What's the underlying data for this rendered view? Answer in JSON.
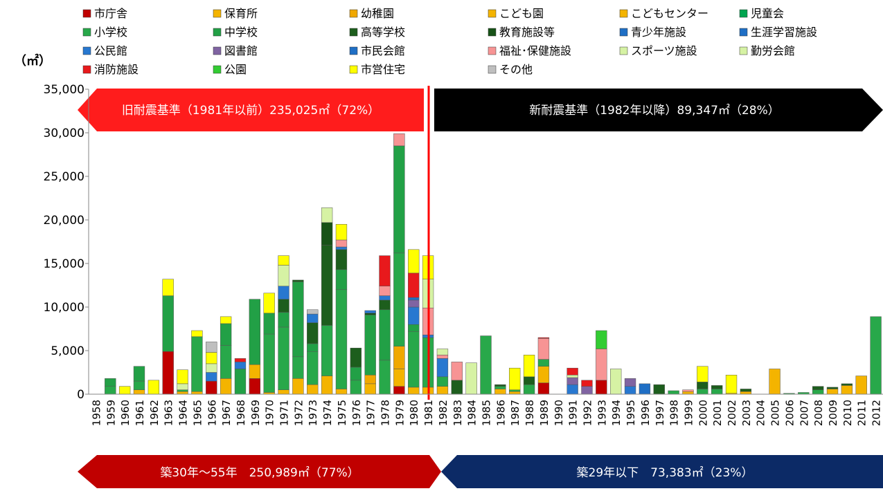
{
  "chart_data": {
    "type": "stacked_bar",
    "y_label": "（㎡）",
    "categories": [
      "1958",
      "1959",
      "1960",
      "1961",
      "1962",
      "1963",
      "1964",
      "1965",
      "1966",
      "1967",
      "1968",
      "1969",
      "1970",
      "1971",
      "1972",
      "1973",
      "1974",
      "1975",
      "1976",
      "1977",
      "1978",
      "1979",
      "1980",
      "1981",
      "1982",
      "1983",
      "1984",
      "1985",
      "1986",
      "1987",
      "1988",
      "1989",
      "1990",
      "1991",
      "1992",
      "1993",
      "1994",
      "1995",
      "1996",
      "1997",
      "1998",
      "1999",
      "2000",
      "2001",
      "2002",
      "2003",
      "2004",
      "2005",
      "2006",
      "2007",
      "2008",
      "2009",
      "2010",
      "2011",
      "2012"
    ],
    "ylim": [
      0,
      35000
    ],
    "yticks": [
      0,
      {
        "value": 5000,
        "label": "5,000"
      },
      {
        "value": 10000,
        "label": "10,000"
      },
      {
        "value": 15000,
        "label": "15,000"
      },
      {
        "value": 20000,
        "label": "20,000"
      },
      {
        "value": 25000,
        "label": "25,000"
      },
      {
        "value": 30000,
        "label": "30,000"
      },
      {
        "value": 35000,
        "label": "35,000"
      }
    ],
    "annotations": [
      "旧耐震基準（1981年以前）235,025㎡（72%）",
      "新耐震基準（1982年以降）89,347㎡（28%）",
      "築30年～55年　250,989㎡（77%）",
      "築29年以下　73,383㎡（23%）"
    ],
    "series": [
      {
        "name": "市庁舎",
        "color": "#c00000",
        "values": [
          0,
          0,
          0,
          0,
          0,
          4900,
          0,
          0,
          1500,
          0,
          0,
          1800,
          0,
          0,
          0,
          0,
          0,
          0,
          0,
          0,
          0,
          900,
          0,
          0,
          0,
          0,
          0,
          0,
          0,
          0,
          0,
          1300,
          0,
          0,
          0,
          1600,
          0,
          0,
          0,
          0,
          0,
          0,
          0,
          0,
          0,
          0,
          0,
          0,
          0,
          0,
          0,
          0,
          0,
          0,
          0
        ]
      },
      {
        "name": "保育所",
        "color": "#f4b400",
        "values": [
          0,
          0,
          0,
          500,
          0,
          0,
          300,
          300,
          0,
          1800,
          0,
          1600,
          200,
          500,
          1800,
          1100,
          2100,
          600,
          0,
          1200,
          0,
          2000,
          800,
          800,
          900,
          0,
          0,
          0,
          600,
          300,
          0,
          1900,
          0,
          0,
          0,
          0,
          0,
          0,
          0,
          0,
          0,
          300,
          0,
          0,
          100,
          300,
          0,
          2900,
          0,
          0,
          0,
          600,
          1000,
          2100,
          0
        ]
      },
      {
        "name": "幼稚園",
        "color": "#f0a800",
        "values": [
          0,
          0,
          0,
          0,
          0,
          0,
          0,
          0,
          0,
          0,
          0,
          0,
          0,
          0,
          0,
          0,
          0,
          0,
          0,
          1000,
          0,
          2600,
          0,
          0,
          0,
          0,
          0,
          0,
          0,
          0,
          0,
          0,
          0,
          0,
          0,
          0,
          0,
          0,
          0,
          0,
          0,
          0,
          0,
          0,
          0,
          0,
          0,
          0,
          0,
          0,
          0,
          0,
          0,
          0,
          0
        ]
      },
      {
        "name": "こども園",
        "color": "#f4b400",
        "values": [
          0,
          0,
          0,
          0,
          0,
          0,
          0,
          0,
          0,
          0,
          0,
          0,
          0,
          0,
          0,
          0,
          0,
          0,
          0,
          0,
          0,
          0,
          0,
          0,
          0,
          0,
          0,
          0,
          0,
          0,
          0,
          0,
          0,
          0,
          0,
          0,
          0,
          0,
          0,
          0,
          0,
          0,
          0,
          0,
          0,
          0,
          0,
          0,
          0,
          0,
          0,
          0,
          0,
          0,
          0
        ]
      },
      {
        "name": "こどもセンター",
        "color": "#f4b400",
        "values": [
          0,
          0,
          0,
          0,
          0,
          0,
          0,
          0,
          0,
          0,
          0,
          0,
          0,
          0,
          0,
          0,
          0,
          0,
          0,
          0,
          0,
          0,
          0,
          0,
          0,
          0,
          0,
          0,
          0,
          0,
          0,
          0,
          0,
          0,
          0,
          0,
          0,
          0,
          0,
          0,
          0,
          0,
          0,
          0,
          0,
          0,
          0,
          0,
          0,
          0,
          0,
          0,
          0,
          0,
          0
        ]
      },
      {
        "name": "児童会",
        "color": "#00a550",
        "values": [
          0,
          0,
          0,
          0,
          0,
          0,
          0,
          0,
          0,
          0,
          0,
          0,
          0,
          0,
          0,
          0,
          0,
          0,
          0,
          0,
          0,
          0,
          0,
          0,
          0,
          0,
          0,
          0,
          0,
          0,
          0,
          0,
          0,
          0,
          0,
          0,
          0,
          0,
          0,
          0,
          0,
          0,
          0,
          0,
          0,
          0,
          0,
          0,
          0,
          0,
          0,
          0,
          0,
          0,
          0
        ]
      },
      {
        "name": "小学校",
        "color": "#28a84a",
        "values": [
          0,
          900,
          0,
          1000,
          0,
          0,
          200,
          6300,
          0,
          3800,
          0,
          0,
          6700,
          7200,
          2500,
          3800,
          5800,
          11400,
          1600,
          0,
          3900,
          10700,
          6400,
          5700,
          1100,
          0,
          0,
          6700,
          300,
          200,
          1100,
          800,
          0,
          0,
          0,
          0,
          0,
          0,
          0,
          0,
          400,
          0,
          600,
          600,
          0,
          0,
          0,
          0,
          100,
          200,
          500,
          0,
          0,
          0,
          8900
        ]
      },
      {
        "name": "中学校",
        "color": "#22a046",
        "values": [
          0,
          900,
          0,
          1700,
          0,
          6400,
          0,
          0,
          0,
          2500,
          2900,
          7500,
          2400,
          1700,
          8600,
          900,
          0,
          2300,
          1500,
          6900,
          5800,
          12300,
          800,
          0,
          0,
          0,
          0,
          0,
          0,
          0,
          0,
          0,
          0,
          0,
          0,
          0,
          0,
          0,
          0,
          0,
          0,
          0,
          0,
          0,
          0,
          0,
          0,
          0,
          0,
          0,
          0,
          0,
          0,
          0,
          0
        ]
      },
      {
        "name": "高等学校",
        "color": "#1d5e1d",
        "values": [
          0,
          0,
          0,
          0,
          0,
          0,
          0,
          0,
          0,
          0,
          0,
          0,
          0,
          1500,
          200,
          2400,
          9200,
          2300,
          2200,
          0,
          1100,
          0,
          0,
          0,
          0,
          1600,
          0,
          0,
          200,
          0,
          900,
          0,
          0,
          0,
          0,
          0,
          0,
          0,
          0,
          1100,
          0,
          0,
          800,
          400,
          0,
          300,
          0,
          0,
          0,
          0,
          400,
          200,
          200,
          0,
          0
        ]
      },
      {
        "name": "教育施設等",
        "color": "#175217",
        "values": [
          0,
          0,
          0,
          0,
          0,
          0,
          0,
          0,
          0,
          0,
          0,
          0,
          0,
          0,
          0,
          0,
          2600,
          0,
          0,
          200,
          0,
          0,
          0,
          0,
          0,
          0,
          0,
          0,
          0,
          0,
          0,
          0,
          0,
          0,
          0,
          0,
          0,
          0,
          0,
          0,
          0,
          0,
          0,
          0,
          0,
          0,
          0,
          0,
          0,
          0,
          0,
          0,
          0,
          0,
          0
        ]
      },
      {
        "name": "青少年施設",
        "color": "#1f6fc5",
        "values": [
          0,
          0,
          0,
          0,
          0,
          0,
          0,
          0,
          0,
          0,
          0,
          0,
          0,
          0,
          0,
          0,
          0,
          0,
          0,
          0,
          0,
          0,
          0,
          0,
          0,
          0,
          0,
          0,
          0,
          0,
          0,
          0,
          0,
          0,
          0,
          0,
          0,
          0,
          1200,
          0,
          0,
          0,
          0,
          0,
          0,
          0,
          0,
          0,
          0,
          0,
          0,
          0,
          0,
          0,
          0
        ]
      },
      {
        "name": "生涯学習施設",
        "color": "#1f6fc5",
        "values": [
          0,
          0,
          0,
          0,
          0,
          0,
          0,
          0,
          0,
          0,
          0,
          0,
          0,
          0,
          0,
          0,
          0,
          0,
          0,
          0,
          0,
          0,
          0,
          0,
          0,
          0,
          0,
          0,
          0,
          0,
          0,
          0,
          0,
          0,
          0,
          0,
          0,
          0,
          0,
          0,
          0,
          0,
          0,
          0,
          0,
          0,
          0,
          0,
          0,
          0,
          0,
          0,
          0,
          0,
          0
        ]
      },
      {
        "name": "公民館",
        "color": "#2878d0",
        "values": [
          0,
          0,
          0,
          0,
          0,
          0,
          0,
          0,
          1000,
          0,
          800,
          0,
          0,
          1500,
          0,
          1000,
          0,
          300,
          0,
          300,
          500,
          0,
          2000,
          300,
          2100,
          0,
          0,
          0,
          0,
          0,
          0,
          0,
          0,
          1100,
          0,
          0,
          0,
          900,
          0,
          0,
          0,
          0,
          0,
          0,
          0,
          0,
          0,
          0,
          0,
          0,
          0,
          0,
          0,
          0,
          0
        ]
      },
      {
        "name": "図書館",
        "color": "#8064a2",
        "values": [
          0,
          0,
          0,
          0,
          0,
          0,
          0,
          0,
          0,
          0,
          0,
          0,
          0,
          0,
          0,
          0,
          0,
          0,
          0,
          0,
          0,
          0,
          800,
          0,
          0,
          0,
          0,
          0,
          0,
          0,
          0,
          0,
          0,
          800,
          900,
          0,
          0,
          900,
          0,
          0,
          0,
          0,
          0,
          0,
          0,
          0,
          0,
          0,
          0,
          0,
          0,
          0,
          0,
          0,
          0
        ]
      },
      {
        "name": "市民会館",
        "color": "#1f6fc5",
        "values": [
          0,
          0,
          0,
          0,
          0,
          0,
          0,
          0,
          0,
          0,
          0,
          0,
          0,
          0,
          0,
          0,
          0,
          0,
          0,
          0,
          0,
          0,
          300,
          0,
          0,
          0,
          0,
          0,
          0,
          0,
          0,
          0,
          0,
          0,
          0,
          0,
          0,
          0,
          0,
          0,
          0,
          0,
          0,
          0,
          0,
          0,
          0,
          0,
          0,
          0,
          0,
          0,
          0,
          0,
          0
        ]
      },
      {
        "name": "福祉･保健施設",
        "color": "#f79494",
        "values": [
          0,
          0,
          0,
          0,
          0,
          0,
          0,
          0,
          0,
          0,
          0,
          0,
          0,
          0,
          0,
          0,
          0,
          800,
          0,
          0,
          1100,
          1400,
          0,
          3100,
          400,
          2100,
          0,
          0,
          0,
          0,
          0,
          2400,
          0,
          0,
          0,
          3600,
          0,
          0,
          0,
          0,
          0,
          200,
          0,
          0,
          0,
          0,
          0,
          0,
          0,
          0,
          0,
          0,
          0,
          0,
          0
        ]
      },
      {
        "name": "スポーツ施設",
        "color": "#d6f2a4",
        "values": [
          0,
          0,
          0,
          0,
          0,
          0,
          700,
          0,
          1000,
          0,
          0,
          0,
          0,
          2400,
          0,
          0,
          1700,
          0,
          0,
          0,
          0,
          0,
          0,
          3300,
          700,
          0,
          3600,
          0,
          0,
          0,
          0,
          0,
          0,
          300,
          0,
          0,
          2900,
          0,
          0,
          0,
          0,
          0,
          0,
          0,
          0,
          0,
          0,
          0,
          0,
          0,
          0,
          0,
          0,
          0,
          0
        ]
      },
      {
        "name": "勤労会館",
        "color": "#d6f2a4",
        "values": [
          0,
          0,
          0,
          0,
          0,
          0,
          0,
          0,
          0,
          0,
          0,
          0,
          0,
          0,
          0,
          0,
          0,
          0,
          0,
          0,
          0,
          0,
          0,
          0,
          0,
          0,
          0,
          0,
          0,
          0,
          0,
          0,
          0,
          0,
          0,
          0,
          0,
          0,
          0,
          0,
          0,
          0,
          0,
          0,
          0,
          0,
          0,
          0,
          0,
          0,
          0,
          0,
          0,
          0,
          0
        ]
      },
      {
        "name": "消防施設",
        "color": "#e8191c",
        "values": [
          0,
          0,
          0,
          0,
          0,
          0,
          0,
          0,
          0,
          0,
          400,
          0,
          0,
          0,
          0,
          0,
          0,
          0,
          0,
          0,
          3500,
          0,
          2800,
          0,
          0,
          0,
          0,
          0,
          0,
          0,
          0,
          100,
          0,
          800,
          700,
          0,
          0,
          0,
          0,
          0,
          0,
          0,
          0,
          0,
          0,
          0,
          0,
          0,
          0,
          0,
          0,
          0,
          0,
          0,
          0
        ]
      },
      {
        "name": "公園",
        "color": "#33cc33",
        "values": [
          0,
          0,
          0,
          0,
          0,
          0,
          0,
          0,
          0,
          0,
          0,
          0,
          0,
          0,
          0,
          0,
          0,
          0,
          0,
          0,
          0,
          0,
          0,
          0,
          0,
          0,
          0,
          0,
          0,
          0,
          0,
          0,
          0,
          0,
          0,
          2100,
          0,
          0,
          0,
          0,
          0,
          0,
          0,
          0,
          0,
          0,
          0,
          0,
          0,
          0,
          0,
          0,
          0,
          0,
          0
        ]
      },
      {
        "name": "市営住宅",
        "color": "#ffff00",
        "values": [
          0,
          0,
          900,
          0,
          1600,
          1900,
          1600,
          700,
          1300,
          800,
          0,
          0,
          2300,
          1100,
          0,
          0,
          0,
          1800,
          0,
          0,
          0,
          0,
          2700,
          2700,
          0,
          0,
          0,
          0,
          0,
          2500,
          2500,
          0,
          0,
          0,
          0,
          0,
          0,
          0,
          0,
          0,
          0,
          0,
          1800,
          0,
          2100,
          0,
          0,
          0,
          0,
          0,
          0,
          0,
          0,
          0,
          0
        ]
      },
      {
        "name": "その他",
        "color": "#bfbfbf",
        "values": [
          0,
          0,
          0,
          0,
          0,
          0,
          0,
          0,
          1200,
          0,
          0,
          0,
          0,
          0,
          0,
          500,
          0,
          0,
          0,
          0,
          0,
          0,
          0,
          0,
          0,
          0,
          0,
          0,
          0,
          0,
          0,
          0,
          0,
          0,
          0,
          0,
          0,
          0,
          0,
          0,
          0,
          0,
          0,
          0,
          0,
          0,
          0,
          0,
          0,
          0,
          0,
          0,
          0,
          0,
          0
        ]
      }
    ]
  }
}
